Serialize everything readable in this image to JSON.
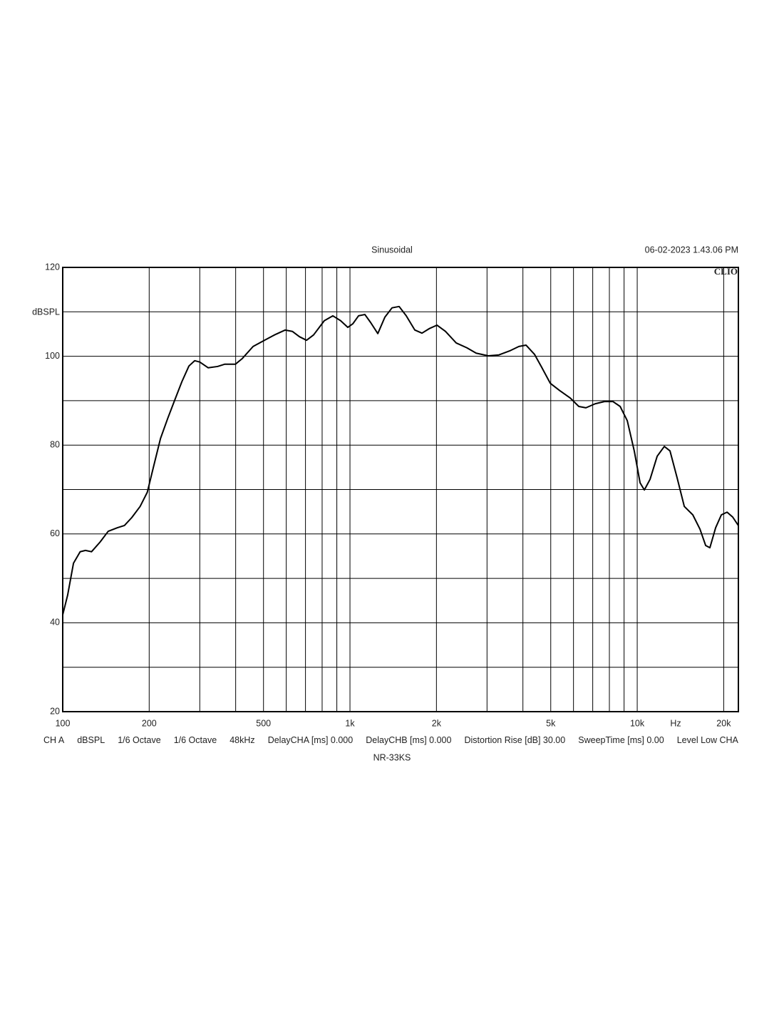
{
  "chart_data": {
    "type": "line",
    "title": "Sinusoidal",
    "timestamp": "06-02-2023 1.43.06 PM",
    "brand": "CLIO",
    "y_axis_label": "dBSPL",
    "x_axis_label": "Hz",
    "info": [
      "CH A",
      "dBSPL",
      "1/6 Octave",
      "1/6 Octave",
      "48kHz",
      "DelayCHA [ms] 0.000",
      "DelayCHB [ms] 0.000",
      "Distortion Rise [dB] 30.00",
      "SweepTime [ms] 0.00",
      "Level Low CHA"
    ],
    "footer": "NR-33KS",
    "x_scale": "log",
    "grid": true,
    "xlim": [
      100,
      22500
    ],
    "ylim": [
      20,
      120
    ],
    "xticks": [
      100,
      200,
      500,
      {
        "value": 1000,
        "label": "1k"
      },
      {
        "value": 2000,
        "label": "2k"
      },
      {
        "value": 5000,
        "label": "5k"
      },
      {
        "value": 10000,
        "label": "10k"
      },
      {
        "value": 20000,
        "label": "20k"
      }
    ],
    "yticks": [
      20,
      40,
      60,
      80,
      100,
      120
    ],
    "series": [
      {
        "name": "CH A",
        "color": "#000000",
        "x": [
          100,
          104,
          109,
          115,
          120,
          126,
          135,
          144,
          155,
          164,
          174,
          186,
          197,
          207,
          219,
          232,
          245,
          260,
          275,
          288,
          300,
          321,
          346,
          366,
          399,
          422,
          460,
          501,
          546,
          595,
          630,
          667,
          706,
          747,
          814,
          872,
          928,
          983,
          1023,
          1071,
          1127,
          1180,
          1250,
          1323,
          1401,
          1483,
          1570,
          1682,
          1781,
          1886,
          2008,
          2150,
          2343,
          2553,
          2750,
          3030,
          3301,
          3596,
          3873,
          4102,
          4393,
          4651,
          4983,
          5365,
          5846,
          6261,
          6628,
          7139,
          7688,
          8235,
          8721,
          9233,
          9772,
          10233,
          10588,
          11084,
          11735,
          12426,
          13004,
          13772,
          14582,
          15614,
          16533,
          17310,
          17905,
          18750,
          19630,
          20550,
          21500,
          22490
        ],
        "values": [
          41.8,
          46.2,
          53.4,
          56.0,
          56.3,
          56.0,
          58.2,
          60.6,
          61.4,
          61.9,
          63.7,
          66.2,
          69.4,
          75.1,
          81.5,
          86.0,
          90.0,
          94.3,
          97.8,
          99.0,
          98.7,
          97.4,
          97.7,
          98.2,
          98.2,
          99.5,
          102.2,
          103.5,
          104.8,
          105.9,
          105.6,
          104.4,
          103.6,
          104.8,
          108.0,
          109.1,
          108.0,
          106.5,
          107.3,
          109.1,
          109.4,
          107.6,
          105.1,
          108.8,
          110.9,
          111.2,
          109.1,
          105.9,
          105.2,
          106.2,
          107.0,
          105.6,
          103.0,
          101.9,
          100.7,
          100.1,
          100.3,
          101.2,
          102.2,
          102.5,
          100.4,
          97.5,
          93.9,
          92.3,
          90.6,
          88.7,
          88.4,
          89.3,
          89.8,
          89.8,
          88.7,
          85.5,
          78.6,
          71.5,
          69.9,
          72.3,
          77.5,
          79.7,
          78.7,
          72.6,
          66.2,
          64.3,
          61.1,
          57.4,
          56.9,
          61.4,
          64.3,
          64.9,
          63.8,
          61.9
        ]
      }
    ]
  }
}
